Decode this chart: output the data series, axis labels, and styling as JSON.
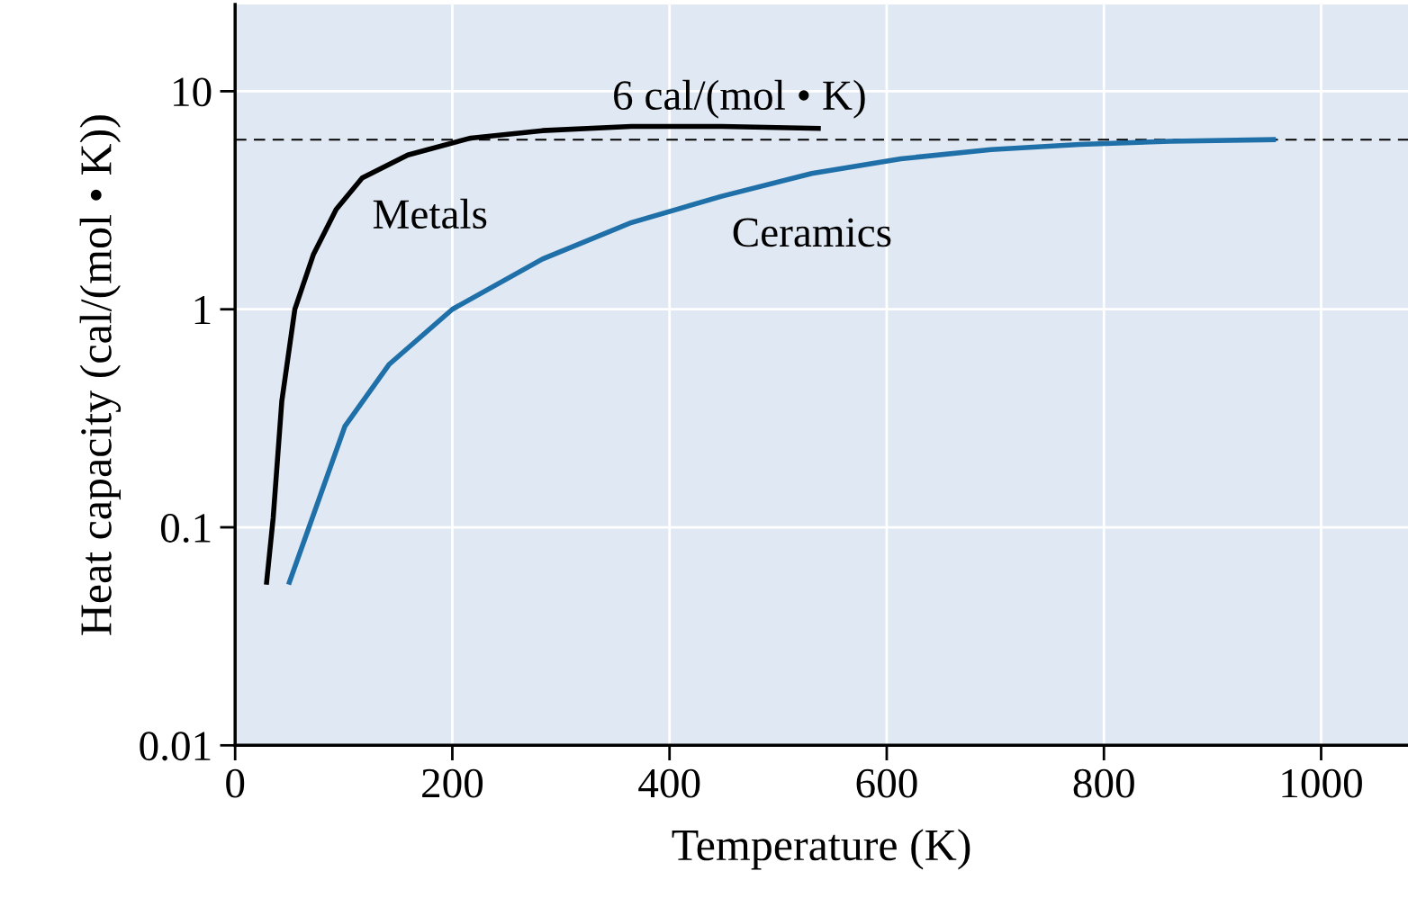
{
  "chart_data": {
    "type": "line",
    "xlabel": "Temperature (K)",
    "ylabel": "Heat capacity (cal/(mol • K))",
    "log": "y",
    "grid": true,
    "xlim": [
      0,
      1080
    ],
    "ylim": [
      0.01,
      25
    ],
    "xticks": [
      0,
      200,
      400,
      600,
      800,
      1000
    ],
    "yticks": [
      0.01,
      0.1,
      1,
      10
    ],
    "series": [
      {
        "name": "Metals",
        "color": "#000000",
        "x": [
          29,
          35,
          43,
          55,
          72,
          93,
          117,
          159,
          217,
          283,
          365,
          448,
          537
        ],
        "values": [
          0.056,
          0.11,
          0.38,
          1,
          1.78,
          2.87,
          4.0,
          5.1,
          6.1,
          6.6,
          6.9,
          6.9,
          6.75
        ]
      },
      {
        "name": "Ceramics",
        "color": "#1f6fa8",
        "x": [
          50,
          68,
          101,
          142,
          200,
          283,
          365,
          448,
          531,
          613,
          696,
          778,
          861,
          956
        ],
        "values": [
          0.056,
          0.1,
          0.29,
          0.56,
          1,
          1.7,
          2.5,
          3.3,
          4.2,
          4.9,
          5.4,
          5.7,
          5.9,
          6.0
        ]
      }
    ],
    "ref_lines": [
      {
        "axis": "y",
        "value": 6,
        "label": "6 cal/(mol • K)",
        "color": "#000000",
        "line_style": "dashed"
      }
    ]
  }
}
